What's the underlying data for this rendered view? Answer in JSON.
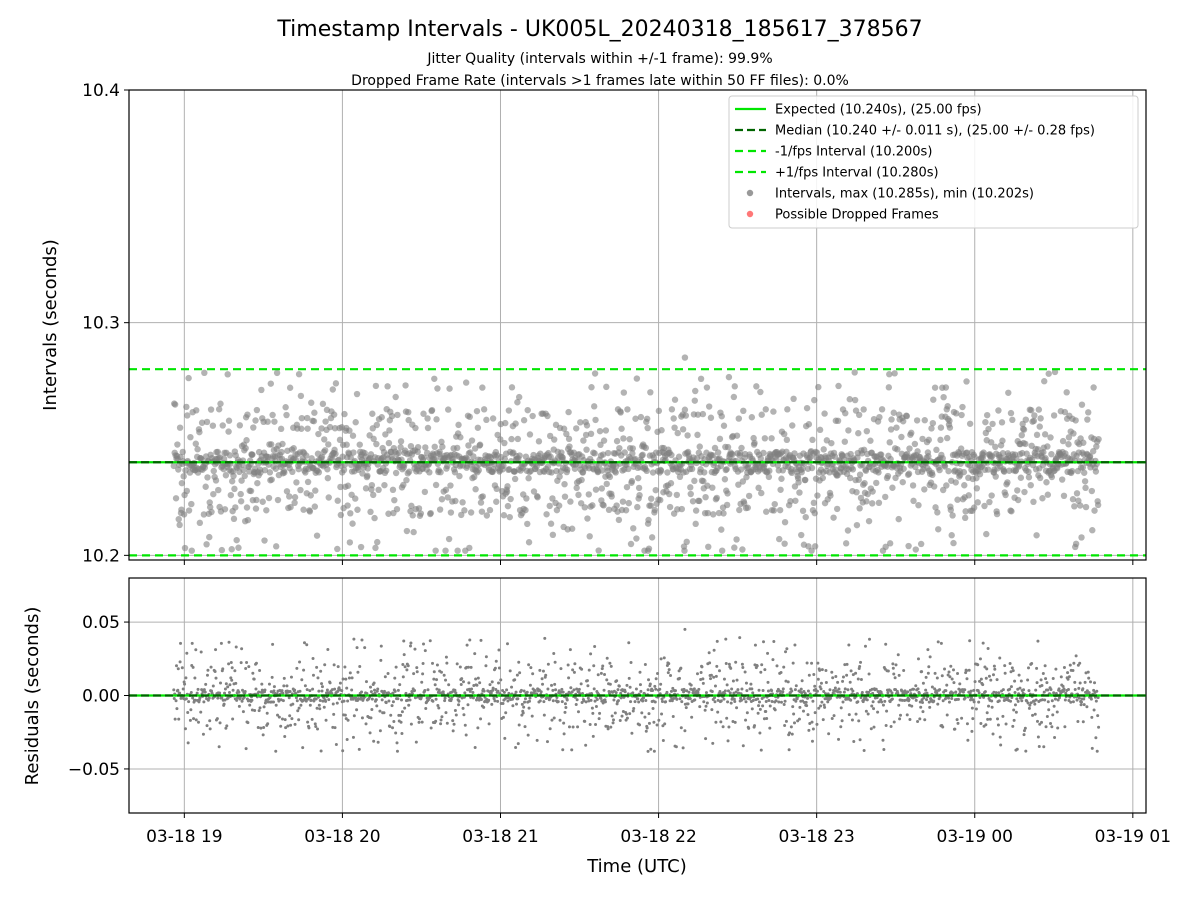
{
  "chart_data": {
    "type": "scatter",
    "title": "Timestamp Intervals - UK005L_20240318_185617_378567",
    "subtitle_lines": [
      "Jitter Quality (intervals within +/-1 frame): 99.9%",
      "Dropped Frame Rate (intervals >1 frames late within 50 FF files): 0.0%"
    ],
    "xlabel": "Time (UTC)",
    "x_range": [
      "2024-03-18 18:39",
      "2024-03-19 01:05"
    ],
    "x_ticks": [
      {
        "time": "2024-03-18 19:00",
        "label": "03-18 19"
      },
      {
        "time": "2024-03-18 20:00",
        "label": "03-18 20"
      },
      {
        "time": "2024-03-18 21:00",
        "label": "03-18 21"
      },
      {
        "time": "2024-03-18 22:00",
        "label": "03-18 22"
      },
      {
        "time": "2024-03-18 23:00",
        "label": "03-18 23"
      },
      {
        "time": "2024-03-19 00:00",
        "label": "03-19 00"
      },
      {
        "time": "2024-03-19 01:00",
        "label": "03-19 01"
      }
    ],
    "data_start": "2024-03-18 18:56",
    "data_end": "2024-03-19 00:47",
    "grid": true,
    "legend_position": "top-right",
    "colors": {
      "expected": "#00e600",
      "median": "#006400",
      "fps_band": "#00e600",
      "intervals": "#808080",
      "dropped": "#ff5555"
    },
    "panels": [
      {
        "name": "intervals",
        "ylabel": "Intervals (seconds)",
        "ylim": [
          10.198,
          10.4
        ],
        "y_ticks": [
          {
            "value": 10.2,
            "label": "10.2"
          },
          {
            "value": 10.3,
            "label": "10.3"
          },
          {
            "value": 10.4,
            "label": "10.4"
          }
        ],
        "lines": [
          {
            "name": "Expected (10.240s), (25.00 fps)",
            "value": 10.24,
            "style": "solid"
          },
          {
            "name": "Median (10.240 +/- 0.011 s), (25.00 +/- 0.28 fps)",
            "value": 10.24,
            "style": "dashed"
          },
          {
            "name": "-1/fps Interval (10.200s)",
            "value": 10.2,
            "style": "dashed"
          },
          {
            "name": "+1/fps Interval (10.280s)",
            "value": 10.28,
            "style": "dashed"
          }
        ],
        "scatter": [
          {
            "name": "Intervals, max (10.285s), min (10.202s)",
            "center": 10.24,
            "max": 10.285,
            "min": 10.202,
            "count": 2060
          },
          {
            "name": "Possible Dropped Frames",
            "count": 0
          }
        ]
      },
      {
        "name": "residuals",
        "ylabel": "Residuals (seconds)",
        "ylim": [
          -0.08,
          0.08
        ],
        "y_ticks": [
          {
            "value": 0.05,
            "label": "0.05"
          },
          {
            "value": 0.0,
            "label": "0.00"
          },
          {
            "value": -0.05,
            "label": "−0.05"
          }
        ],
        "lines": [
          {
            "value": 0.0,
            "style": "solid"
          },
          {
            "value": 0.0,
            "style": "dashed"
          }
        ],
        "scatter": [
          {
            "center": 0.0,
            "max": 0.045,
            "min": -0.038,
            "count": 2060
          }
        ]
      }
    ]
  }
}
